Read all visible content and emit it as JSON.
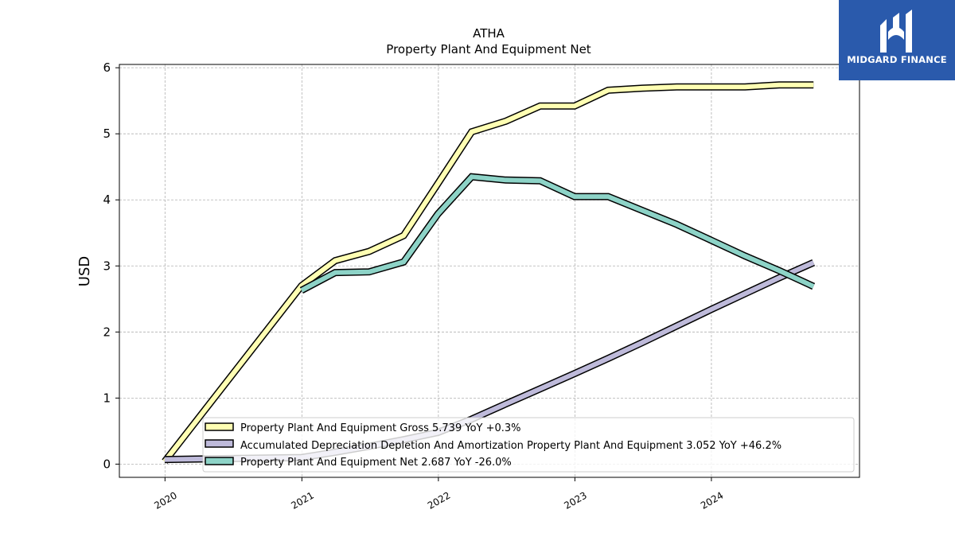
{
  "chart_data": {
    "type": "line",
    "title": "ATHA",
    "subtitle": "Property Plant And Equipment Net",
    "xlabel": "",
    "ylabel": "USD",
    "ylim": [
      -0.2,
      6.05
    ],
    "xlim": [
      "2019-09-01",
      "2025-01-31"
    ],
    "yticks": [
      0,
      1,
      2,
      3,
      4,
      5,
      6
    ],
    "xticks": [
      "2020",
      "2021",
      "2022",
      "2023",
      "2024"
    ],
    "grid": true,
    "legend_position": "bottom-right",
    "x": [
      "2019-12-31",
      "2020-12-31",
      "2021-03-31",
      "2021-06-30",
      "2021-09-30",
      "2021-12-31",
      "2022-03-31",
      "2022-06-30",
      "2022-09-30",
      "2022-12-31",
      "2023-03-31",
      "2023-06-30",
      "2023-09-30",
      "2023-12-31",
      "2024-03-31",
      "2024-06-30",
      "2024-09-30"
    ],
    "series": [
      {
        "name": "Property Plant And Equipment Gross",
        "legend_label": "Property Plant And Equipment Gross  5.739 YoY +0.3%",
        "color": "#ffffb3",
        "values": [
          0.04,
          2.7,
          3.08,
          3.22,
          3.46,
          4.25,
          5.03,
          5.19,
          5.42,
          5.42,
          5.66,
          5.69,
          5.71,
          5.71,
          5.71,
          5.74,
          5.74
        ]
      },
      {
        "name": "Accumulated Depreciation Depletion And Amortization Property Plant And Equipment",
        "legend_label": "Accumulated Depreciation Depletion And Amortization Property Plant And Equipment  3.052 YoY +46.2%",
        "color": "#bebada",
        "values": [
          0.07,
          0.1,
          0.18,
          0.27,
          0.37,
          0.48,
          0.68,
          0.91,
          1.14,
          1.37,
          1.6,
          1.84,
          2.09,
          2.34,
          2.58,
          2.82,
          3.05
        ]
      },
      {
        "name": "Property Plant And Equipment Net",
        "legend_label": "Property Plant And Equipment Net  2.687 YoY -26.0%",
        "color": "#8dd3c7",
        "values": [
          null,
          2.63,
          2.9,
          2.91,
          3.06,
          3.79,
          4.35,
          4.3,
          4.29,
          4.05,
          4.05,
          3.84,
          3.63,
          3.39,
          3.15,
          2.93,
          2.69
        ]
      }
    ]
  },
  "logo": {
    "text": "MIDGARD FINANCE",
    "background": "#2a5aac"
  }
}
